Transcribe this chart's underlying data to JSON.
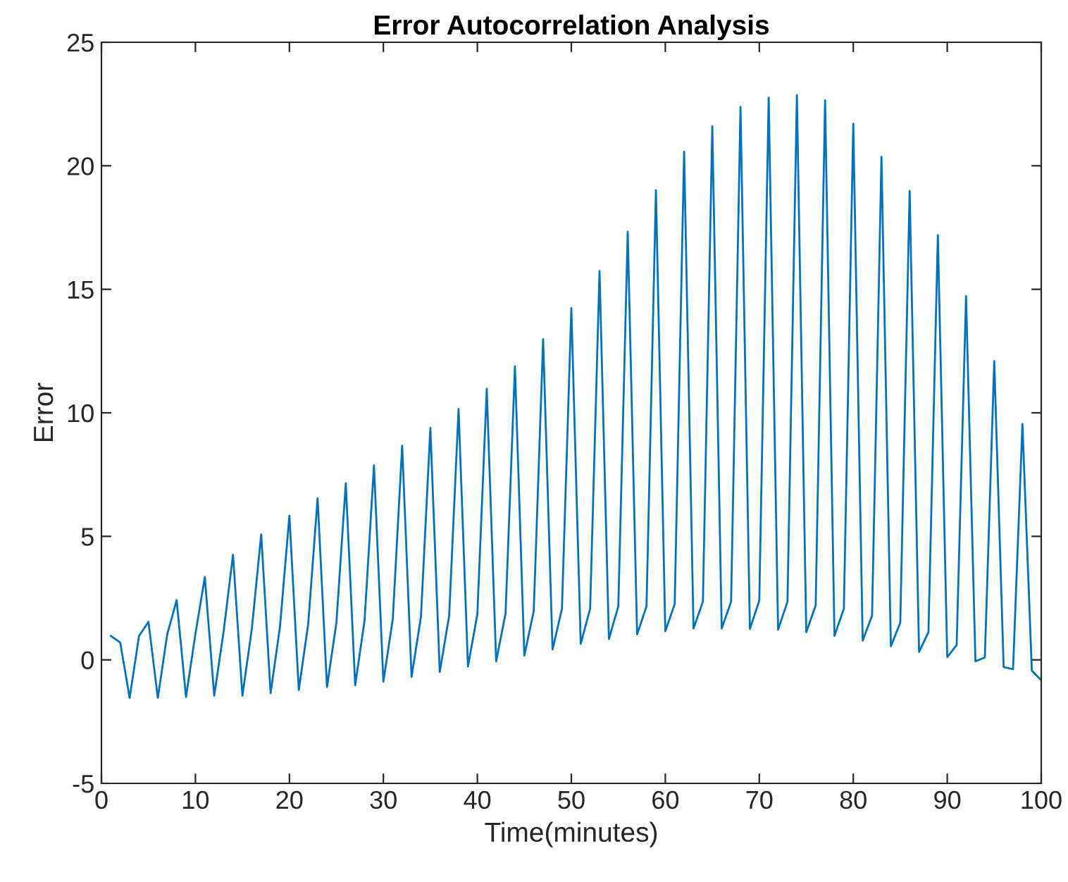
{
  "chart_data": {
    "type": "line",
    "title": "Error Autocorrelation Analysis",
    "xlabel": "Time(minutes)",
    "ylabel": "Error",
    "x": [
      1,
      2,
      3,
      4,
      5,
      6,
      7,
      8,
      9,
      10,
      11,
      12,
      13,
      14,
      15,
      16,
      17,
      18,
      19,
      20,
      21,
      22,
      23,
      24,
      25,
      26,
      27,
      28,
      29,
      30,
      31,
      32,
      33,
      34,
      35,
      36,
      37,
      38,
      39,
      40,
      41,
      42,
      43,
      44,
      45,
      46,
      47,
      48,
      49,
      50,
      51,
      52,
      53,
      54,
      55,
      56,
      57,
      58,
      59,
      60,
      61,
      62,
      63,
      64,
      65,
      66,
      67,
      68,
      69,
      70,
      71,
      72,
      73,
      74,
      75,
      76,
      77,
      78,
      79,
      80,
      81,
      82,
      83,
      84,
      85,
      86,
      87,
      88,
      89,
      90,
      91,
      92,
      93,
      94,
      95,
      96,
      97,
      98,
      99,
      100
    ],
    "series": [
      {
        "color": "#0072bd",
        "values": [
          0.97,
          0.7,
          -1.54,
          0.97,
          1.54,
          -1.54,
          1.03,
          2.42,
          -1.5,
          1.05,
          3.35,
          -1.45,
          1.15,
          4.26,
          -1.45,
          1.25,
          5.08,
          -1.35,
          1.35,
          5.84,
          -1.22,
          1.45,
          6.54,
          -1.1,
          1.5,
          7.15,
          -1.03,
          1.6,
          7.87,
          -0.88,
          1.65,
          8.67,
          -0.69,
          1.75,
          9.39,
          -0.49,
          1.79,
          10.15,
          -0.27,
          1.85,
          10.97,
          -0.06,
          1.88,
          11.88,
          0.17,
          1.98,
          12.98,
          0.42,
          2.07,
          14.24,
          0.65,
          2.07,
          15.74,
          0.84,
          2.17,
          17.33,
          1.03,
          2.17,
          19.01,
          1.16,
          2.26,
          20.57,
          1.27,
          2.36,
          21.6,
          1.27,
          2.36,
          22.38,
          1.25,
          2.4,
          22.76,
          1.22,
          2.36,
          22.86,
          1.12,
          2.2,
          22.65,
          0.97,
          2.07,
          21.7,
          0.78,
          1.79,
          20.36,
          0.55,
          1.5,
          18.98,
          0.32,
          1.12,
          17.19,
          0.11,
          0.6,
          14.72,
          -0.06,
          0.1,
          12.09,
          -0.29,
          -0.38,
          9.55,
          -0.44,
          -0.82
        ]
      }
    ],
    "xlim": [
      0,
      100
    ],
    "ylim": [
      -5,
      25
    ],
    "xticks": [
      0,
      10,
      20,
      30,
      40,
      50,
      60,
      70,
      80,
      90,
      100
    ],
    "yticks": [
      -5,
      0,
      5,
      10,
      15,
      20,
      25
    ],
    "grid": false,
    "marker": "none",
    "line_style": "solid"
  }
}
